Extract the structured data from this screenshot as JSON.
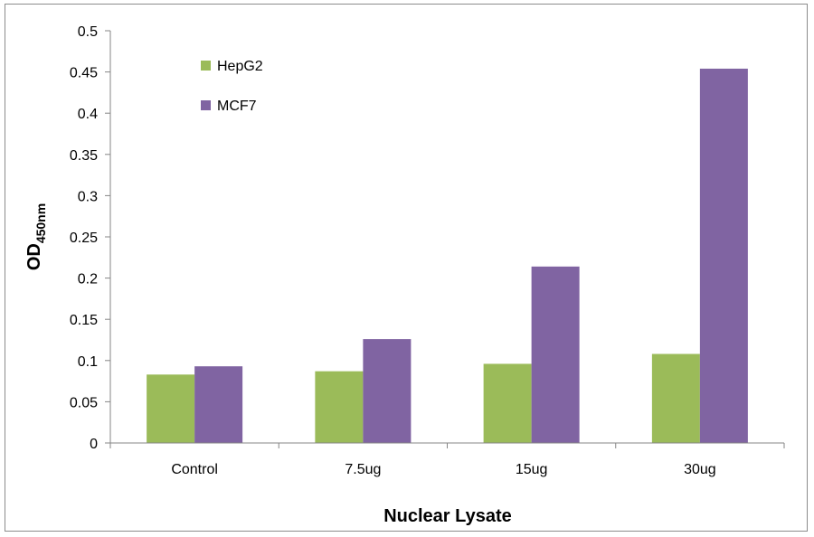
{
  "chart_data": {
    "type": "bar",
    "categories": [
      "Control",
      "7.5ug",
      "15ug",
      "30ug"
    ],
    "series": [
      {
        "name": "HepG2",
        "values": [
          0.083,
          0.087,
          0.096,
          0.108
        ]
      },
      {
        "name": "MCF7",
        "values": [
          0.093,
          0.126,
          0.214,
          0.454
        ]
      }
    ],
    "xlabel": "Nuclear Lysate",
    "ylabel": "OD",
    "ylabel_subscript": "450nm",
    "ylim": [
      0,
      0.5
    ],
    "yticks": [
      "0",
      "0.05",
      "0.1",
      "0.15",
      "0.2",
      "0.25",
      "0.3",
      "0.35",
      "0.4",
      "0.45",
      "0.5"
    ],
    "grid": false,
    "legend_position": "top-left",
    "colors": {
      "HepG2": "#9bbb59",
      "MCF7": "#8064a2"
    }
  }
}
